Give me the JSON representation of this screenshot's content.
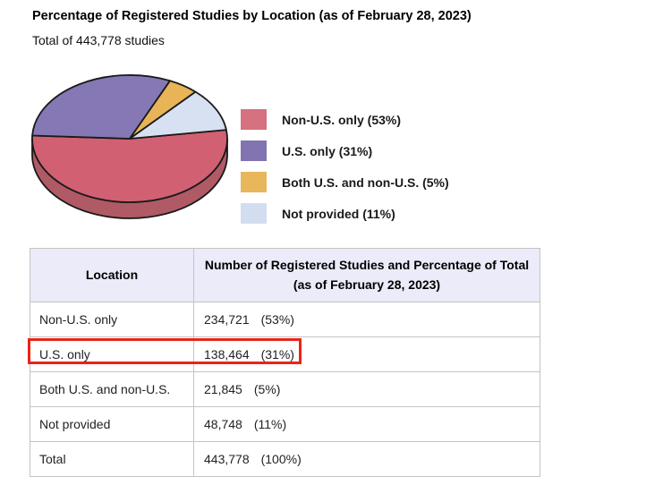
{
  "page": {
    "title": "Percentage of Registered Studies by Location (as of February 28, 2023)",
    "subtitle": "Total of 443,778 studies"
  },
  "colors": {
    "outline": "#1a1a1a",
    "pie_rim": "#b05a66",
    "table_header_bg": "#ebebfa",
    "table_border": "#c4c4c4",
    "highlight_red": "#ea2417"
  },
  "chart_data": {
    "type": "pie",
    "style": "3d",
    "title": "Percentage of Registered Studies by Location (as of February 28, 2023)",
    "subtitle": "Total of 443,778 studies",
    "total_studies": "443,778",
    "start_angle_deg": -8,
    "legend_position": "right",
    "slices": [
      {
        "label": "Non-U.S. only",
        "percent": 53,
        "count": 234721,
        "color": "#d16073"
      },
      {
        "label": "U.S. only",
        "percent": 31,
        "count": 138464,
        "color": "#8578b4"
      },
      {
        "label": "Both U.S. and non-U.S.",
        "percent": 5,
        "count": 21845,
        "color": "#e9b458"
      },
      {
        "label": "Not provided",
        "percent": 11,
        "count": 48748,
        "color": "#d7e1f1"
      }
    ],
    "legend": [
      {
        "label": "Non-U.S. only (53%)",
        "color": "#d6717f"
      },
      {
        "label": "U.S. only (31%)",
        "color": "#8174b0"
      },
      {
        "label": "Both U.S. and non-U.S. (5%)",
        "color": "#e8b75b"
      },
      {
        "label": "Not provided (11%)",
        "color": "#d2deef"
      }
    ]
  },
  "table": {
    "header": {
      "col1": "Location",
      "col2_line1": "Number of Registered Studies and Percentage of Total",
      "col2_line2": "(as of February 28, 2023)"
    },
    "rows": [
      {
        "location": "Non-U.S. only",
        "count": "234,721",
        "percent": "(53%)",
        "highlighted": false
      },
      {
        "location": "U.S. only",
        "count": "138,464",
        "percent": "(31%)",
        "highlighted": true
      },
      {
        "location": "Both U.S. and non-U.S.",
        "count": "21,845",
        "percent": "(5%)",
        "highlighted": false
      },
      {
        "location": "Not provided",
        "count": "48,748",
        "percent": "(11%)",
        "highlighted": false
      },
      {
        "location": "Total",
        "count": "443,778",
        "percent": "(100%)",
        "highlighted": false
      }
    ]
  },
  "annotation": {
    "type": "red-highlight-box",
    "color": "#ea2417",
    "target_row": "U.S. only"
  }
}
